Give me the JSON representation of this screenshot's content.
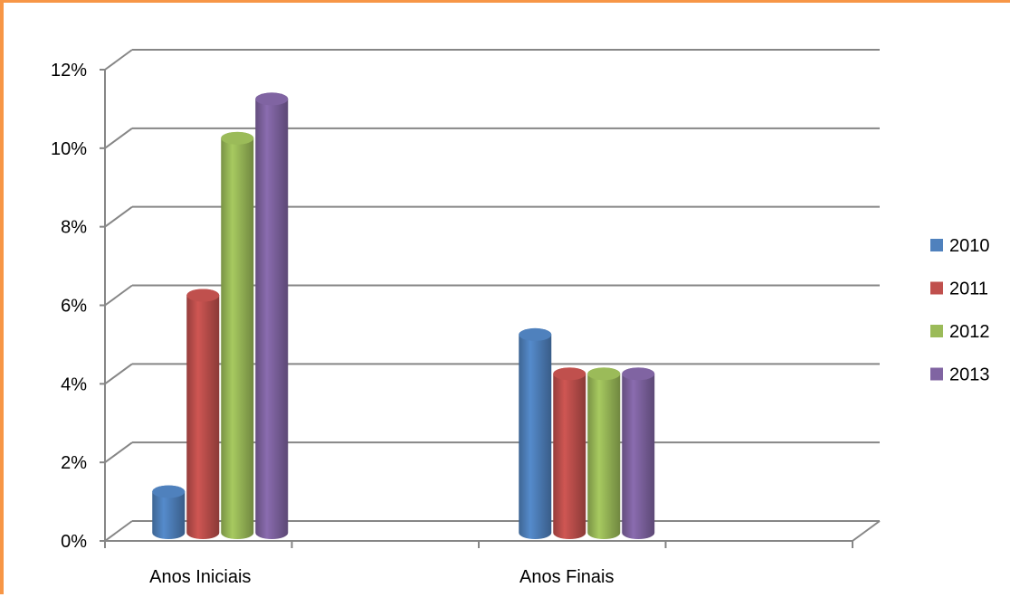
{
  "chart_data": {
    "type": "bar",
    "title": "",
    "xlabel": "",
    "ylabel": "",
    "categories": [
      "Anos Iniciais",
      "Anos Finais"
    ],
    "series": [
      {
        "name": "2010",
        "color": "#4F81BD",
        "values": [
          1,
          5
        ]
      },
      {
        "name": "2011",
        "color": "#C0504D",
        "values": [
          6,
          4
        ]
      },
      {
        "name": "2012",
        "color": "#9BBB59",
        "values": [
          10,
          4
        ]
      },
      {
        "name": "2013",
        "color": "#8064A2",
        "values": [
          11,
          4
        ]
      }
    ],
    "ylim": [
      0,
      12
    ],
    "yticks": [
      "0%",
      "2%",
      "4%",
      "6%",
      "8%",
      "10%",
      "12%"
    ],
    "ytick_values": [
      0,
      2,
      4,
      6,
      8,
      10,
      12
    ],
    "grid": true,
    "legend": "right",
    "style": "3d-cylinder",
    "frame_color": "#F79646"
  }
}
